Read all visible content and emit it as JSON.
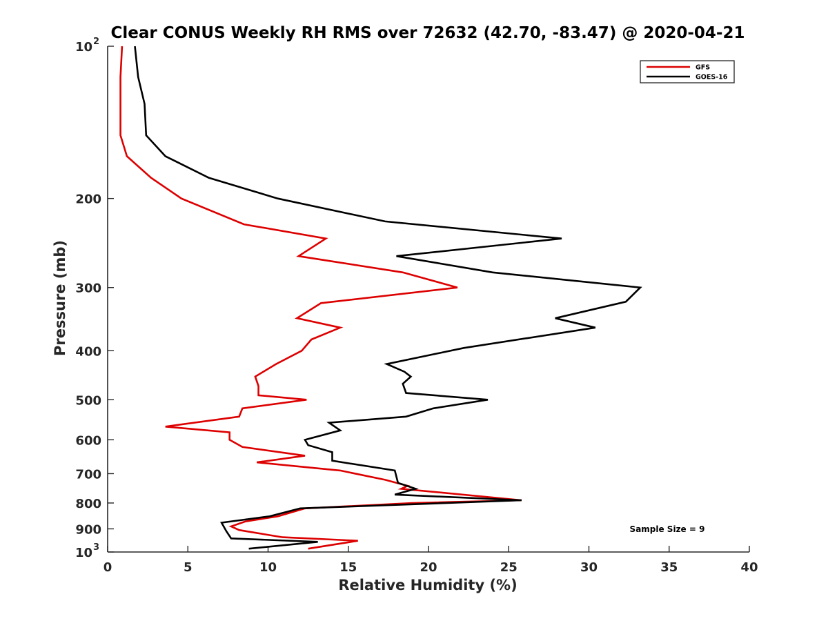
{
  "chart_data": {
    "type": "line",
    "title": "Clear CONUS Weekly RH RMS over 72632 (42.70, -83.47) @ 2020-04-21",
    "xlabel": "Relative Humidity (%)",
    "ylabel": "Pressure (mb)",
    "xlim": [
      0,
      40
    ],
    "ylim": [
      100,
      1000
    ],
    "y_scale": "log",
    "y_reversed": true,
    "grid": false,
    "x_ticks": [
      "0",
      "5",
      "10",
      "15",
      "20",
      "25",
      "30",
      "35",
      "40"
    ],
    "y_ticks": [
      {
        "value": 100,
        "base": "10",
        "exp": "2"
      },
      {
        "value": 200,
        "label": "200"
      },
      {
        "value": 300,
        "label": "300"
      },
      {
        "value": 400,
        "label": "400"
      },
      {
        "value": 500,
        "label": "500"
      },
      {
        "value": 600,
        "label": "600"
      },
      {
        "value": 700,
        "label": "700"
      },
      {
        "value": 800,
        "label": "800"
      },
      {
        "value": 900,
        "label": "900"
      },
      {
        "value": 1000,
        "base": "10",
        "exp": "3"
      }
    ],
    "legend": {
      "position": "top-right",
      "entries": [
        "GFS",
        "GOES-16"
      ]
    },
    "annotation": "Sample Size = 9",
    "series": [
      {
        "name": "GFS",
        "color": "#dd0000",
        "points": [
          [
            0.9,
            100
          ],
          [
            0.8,
            115
          ],
          [
            0.8,
            130
          ],
          [
            0.8,
            150
          ],
          [
            1.2,
            165
          ],
          [
            2.7,
            182
          ],
          [
            4.6,
            200
          ],
          [
            8.5,
            225
          ],
          [
            13.6,
            240
          ],
          [
            11.9,
            260
          ],
          [
            18.4,
            280
          ],
          [
            21.8,
            300
          ],
          [
            13.3,
            322
          ],
          [
            11.8,
            345
          ],
          [
            14.5,
            360
          ],
          [
            12.7,
            380
          ],
          [
            12.1,
            400
          ],
          [
            10.5,
            425
          ],
          [
            9.2,
            450
          ],
          [
            9.4,
            470
          ],
          [
            9.4,
            490
          ],
          [
            12.4,
            500
          ],
          [
            8.4,
            520
          ],
          [
            8.2,
            540
          ],
          [
            3.6,
            565
          ],
          [
            7.6,
            580
          ],
          [
            7.6,
            600
          ],
          [
            8.4,
            620
          ],
          [
            12.3,
            645
          ],
          [
            9.3,
            665
          ],
          [
            14.5,
            690
          ],
          [
            17.3,
            720
          ],
          [
            18.7,
            740
          ],
          [
            18.3,
            750
          ],
          [
            25.8,
            790
          ],
          [
            19.0,
            800
          ],
          [
            12.3,
            820
          ],
          [
            10.6,
            850
          ],
          [
            8.6,
            870
          ],
          [
            7.7,
            890
          ],
          [
            8.2,
            905
          ],
          [
            10.9,
            935
          ],
          [
            15.6,
            950
          ],
          [
            12.5,
            985
          ]
        ]
      },
      {
        "name": "GOES-16",
        "color": "#000000",
        "points": [
          [
            1.7,
            100
          ],
          [
            1.9,
            115
          ],
          [
            2.3,
            130
          ],
          [
            2.4,
            150
          ],
          [
            3.6,
            165
          ],
          [
            6.3,
            182
          ],
          [
            10.6,
            200
          ],
          [
            17.3,
            222
          ],
          [
            28.3,
            240
          ],
          [
            18.0,
            260
          ],
          [
            24.0,
            280
          ],
          [
            33.2,
            300
          ],
          [
            32.3,
            320
          ],
          [
            27.9,
            345
          ],
          [
            30.4,
            360
          ],
          [
            22.2,
            395
          ],
          [
            17.4,
            425
          ],
          [
            18.5,
            440
          ],
          [
            18.9,
            450
          ],
          [
            18.4,
            465
          ],
          [
            18.6,
            485
          ],
          [
            23.7,
            500
          ],
          [
            20.3,
            520
          ],
          [
            18.6,
            540
          ],
          [
            13.8,
            555
          ],
          [
            14.5,
            575
          ],
          [
            12.3,
            600
          ],
          [
            12.5,
            615
          ],
          [
            14.0,
            635
          ],
          [
            14.0,
            660
          ],
          [
            17.9,
            690
          ],
          [
            18.1,
            730
          ],
          [
            19.2,
            750
          ],
          [
            17.9,
            770
          ],
          [
            25.8,
            790
          ],
          [
            12.0,
            820
          ],
          [
            10.1,
            850
          ],
          [
            7.1,
            875
          ],
          [
            7.4,
            910
          ],
          [
            7.7,
            940
          ],
          [
            13.1,
            955
          ],
          [
            8.8,
            985
          ]
        ]
      }
    ]
  }
}
